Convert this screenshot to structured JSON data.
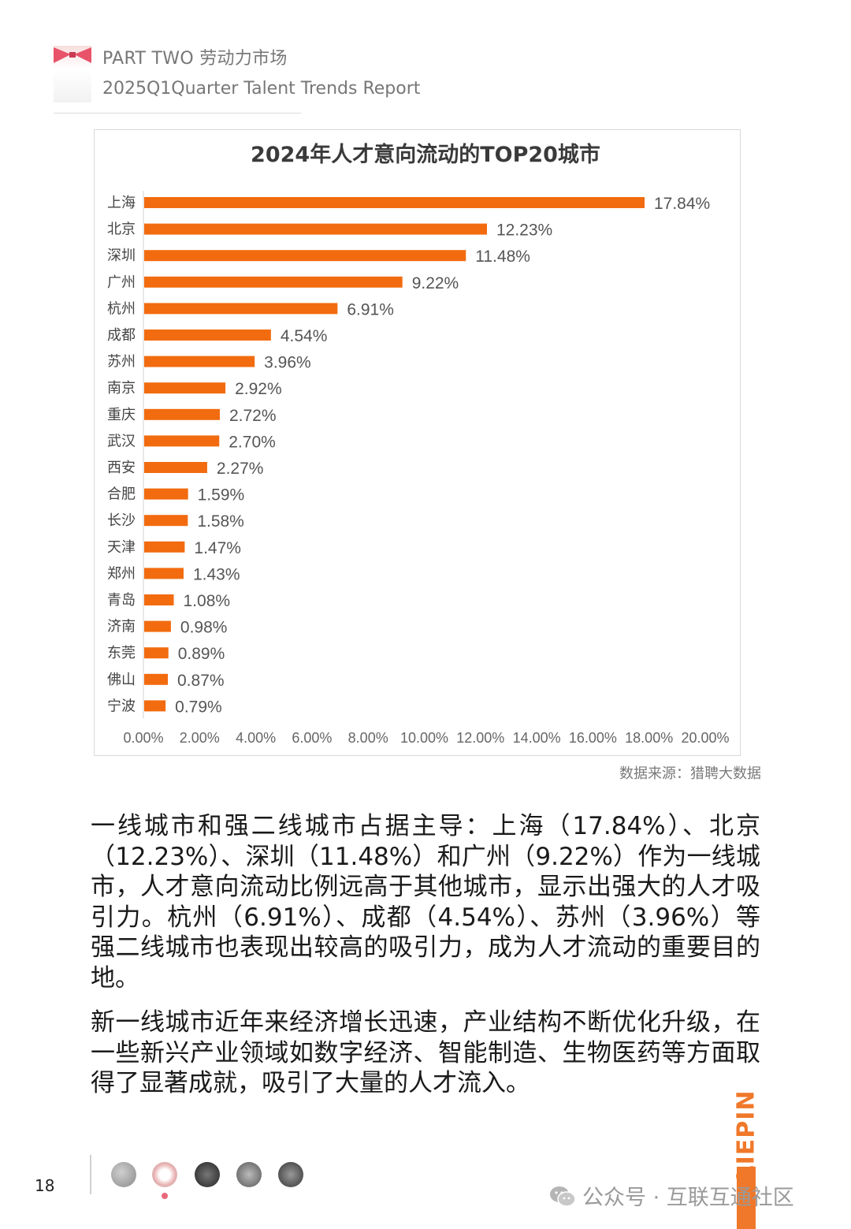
{
  "header": {
    "line1": "PART TWO 劳动力市场",
    "line2": "2025Q1Quarter Talent Trends Report"
  },
  "colors": {
    "accent": "#f26b0f",
    "brand": "#f0782a"
  },
  "chart_data": {
    "type": "bar",
    "orientation": "horizontal",
    "title": "2024年人才意向流动的TOP20城市",
    "categories": [
      "上海",
      "北京",
      "深圳",
      "广州",
      "杭州",
      "成都",
      "苏州",
      "南京",
      "重庆",
      "武汉",
      "西安",
      "合肥",
      "长沙",
      "天津",
      "郑州",
      "青岛",
      "济南",
      "东莞",
      "佛山",
      "宁波"
    ],
    "values": [
      17.84,
      12.23,
      11.48,
      9.22,
      6.91,
      4.54,
      3.96,
      2.92,
      2.72,
      2.7,
      2.27,
      1.59,
      1.58,
      1.47,
      1.43,
      1.08,
      0.98,
      0.89,
      0.87,
      0.79
    ],
    "value_labels": [
      "17.84%",
      "12.23%",
      "11.48%",
      "9.22%",
      "6.91%",
      "4.54%",
      "3.96%",
      "2.92%",
      "2.72%",
      "2.70%",
      "2.27%",
      "1.59%",
      "1.58%",
      "1.47%",
      "1.43%",
      "1.08%",
      "0.98%",
      "0.89%",
      "0.87%",
      "0.79%"
    ],
    "xlim": [
      0,
      20
    ],
    "x_ticks": [
      "0.00%",
      "2.00%",
      "4.00%",
      "6.00%",
      "8.00%",
      "10.00%",
      "12.00%",
      "14.00%",
      "16.00%",
      "18.00%",
      "20.00%"
    ],
    "grid": false,
    "legend": "none",
    "source": "数据来源：猎聘大数据"
  },
  "body": {
    "paragraph1": "一线城市和强二线城市占据主导：上海（17.84%）、北京（12.23%）、深圳（11.48%）和广州（9.22%）作为一线城市，人才意向流动比例远高于其他城市，显示出强大的人才吸引力。杭州（6.91%）、成都（4.54%）、苏州（3.96%）等强二线城市也表现出较高的吸引力，成为人才流动的重要目的地。",
    "paragraph2": "新一线城市近年来经济增长迅速，产业结构不断优化升级，在一些新兴产业领域如数字经济、智能制造、生物医药等方面取得了显著成就，吸引了大量的人才流入。"
  },
  "footer": {
    "page_number": "18",
    "brand": "LIEPIN",
    "watermark": "公众号 · 互联互通社区"
  }
}
